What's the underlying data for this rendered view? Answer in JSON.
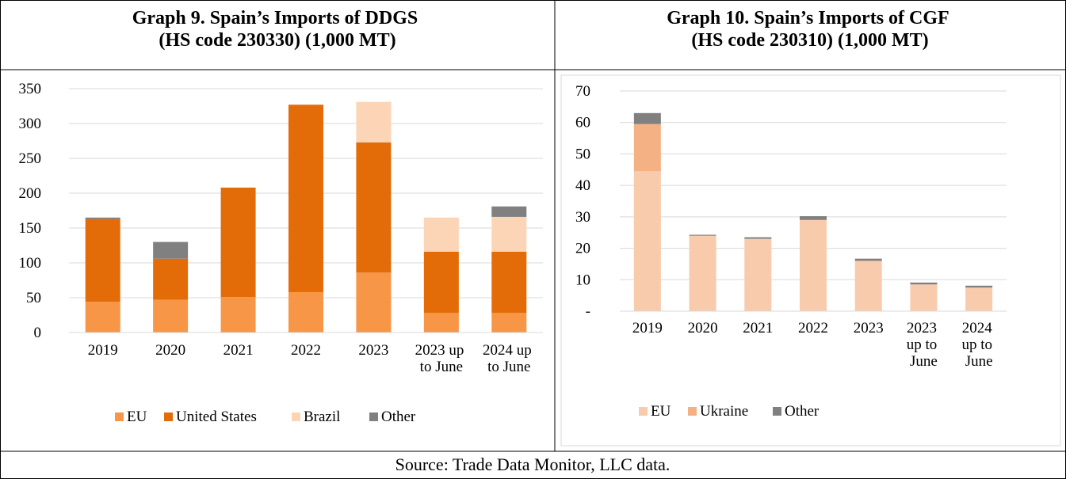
{
  "chart_data": [
    {
      "type": "stacked_bar",
      "title": "Graph 9. Spain’s Imports of DDGS (HS code 230330) (1,000 MT)",
      "categories": [
        "2019",
        "2020",
        "2021",
        "2022",
        "2023",
        "2023 up to June",
        "2024 up to June"
      ],
      "series": [
        {
          "name": "EU",
          "color": "#f79646",
          "values": [
            44,
            47,
            51,
            58,
            86,
            28,
            28
          ]
        },
        {
          "name": "United States",
          "color": "#e36c09",
          "values": [
            119,
            59,
            157,
            269,
            187,
            88,
            88
          ]
        },
        {
          "name": "Brazil",
          "color": "#fbd5b5",
          "values": [
            0,
            0,
            0,
            0,
            58,
            49,
            50
          ]
        },
        {
          "name": "Other",
          "color": "#808080",
          "values": [
            2,
            24,
            0,
            0,
            0,
            0,
            15
          ]
        }
      ],
      "ylim": [
        0,
        350
      ],
      "yticks": [
        0,
        50,
        100,
        150,
        200,
        250,
        300,
        350
      ],
      "grid": true,
      "legend": "bottom"
    },
    {
      "type": "stacked_bar",
      "title": "Graph 10. Spain’s Imports of CGF (HS code 230310) (1,000 MT)",
      "categories": [
        "2019",
        "2020",
        "2021",
        "2022",
        "2023",
        "2023 up to June",
        "2024 up to June"
      ],
      "series": [
        {
          "name": "EU",
          "color": "#f8cbad",
          "values": [
            44.5,
            24,
            23,
            29,
            16,
            8.5,
            7.5
          ]
        },
        {
          "name": "Ukraine",
          "color": "#f4b183",
          "values": [
            15,
            0,
            0,
            0,
            0,
            0,
            0
          ]
        },
        {
          "name": "Other",
          "color": "#808080",
          "values": [
            3.5,
            0.3,
            0.5,
            1.2,
            0.7,
            0.6,
            0.6
          ]
        }
      ],
      "ylim": [
        0,
        70
      ],
      "yticks": [
        {
          "value": 0,
          "label": "-"
        },
        10,
        20,
        30,
        40,
        50,
        60,
        70
      ],
      "grid": true,
      "legend": "bottom"
    }
  ],
  "source": "Source: Trade Data Monitor, LLC data."
}
